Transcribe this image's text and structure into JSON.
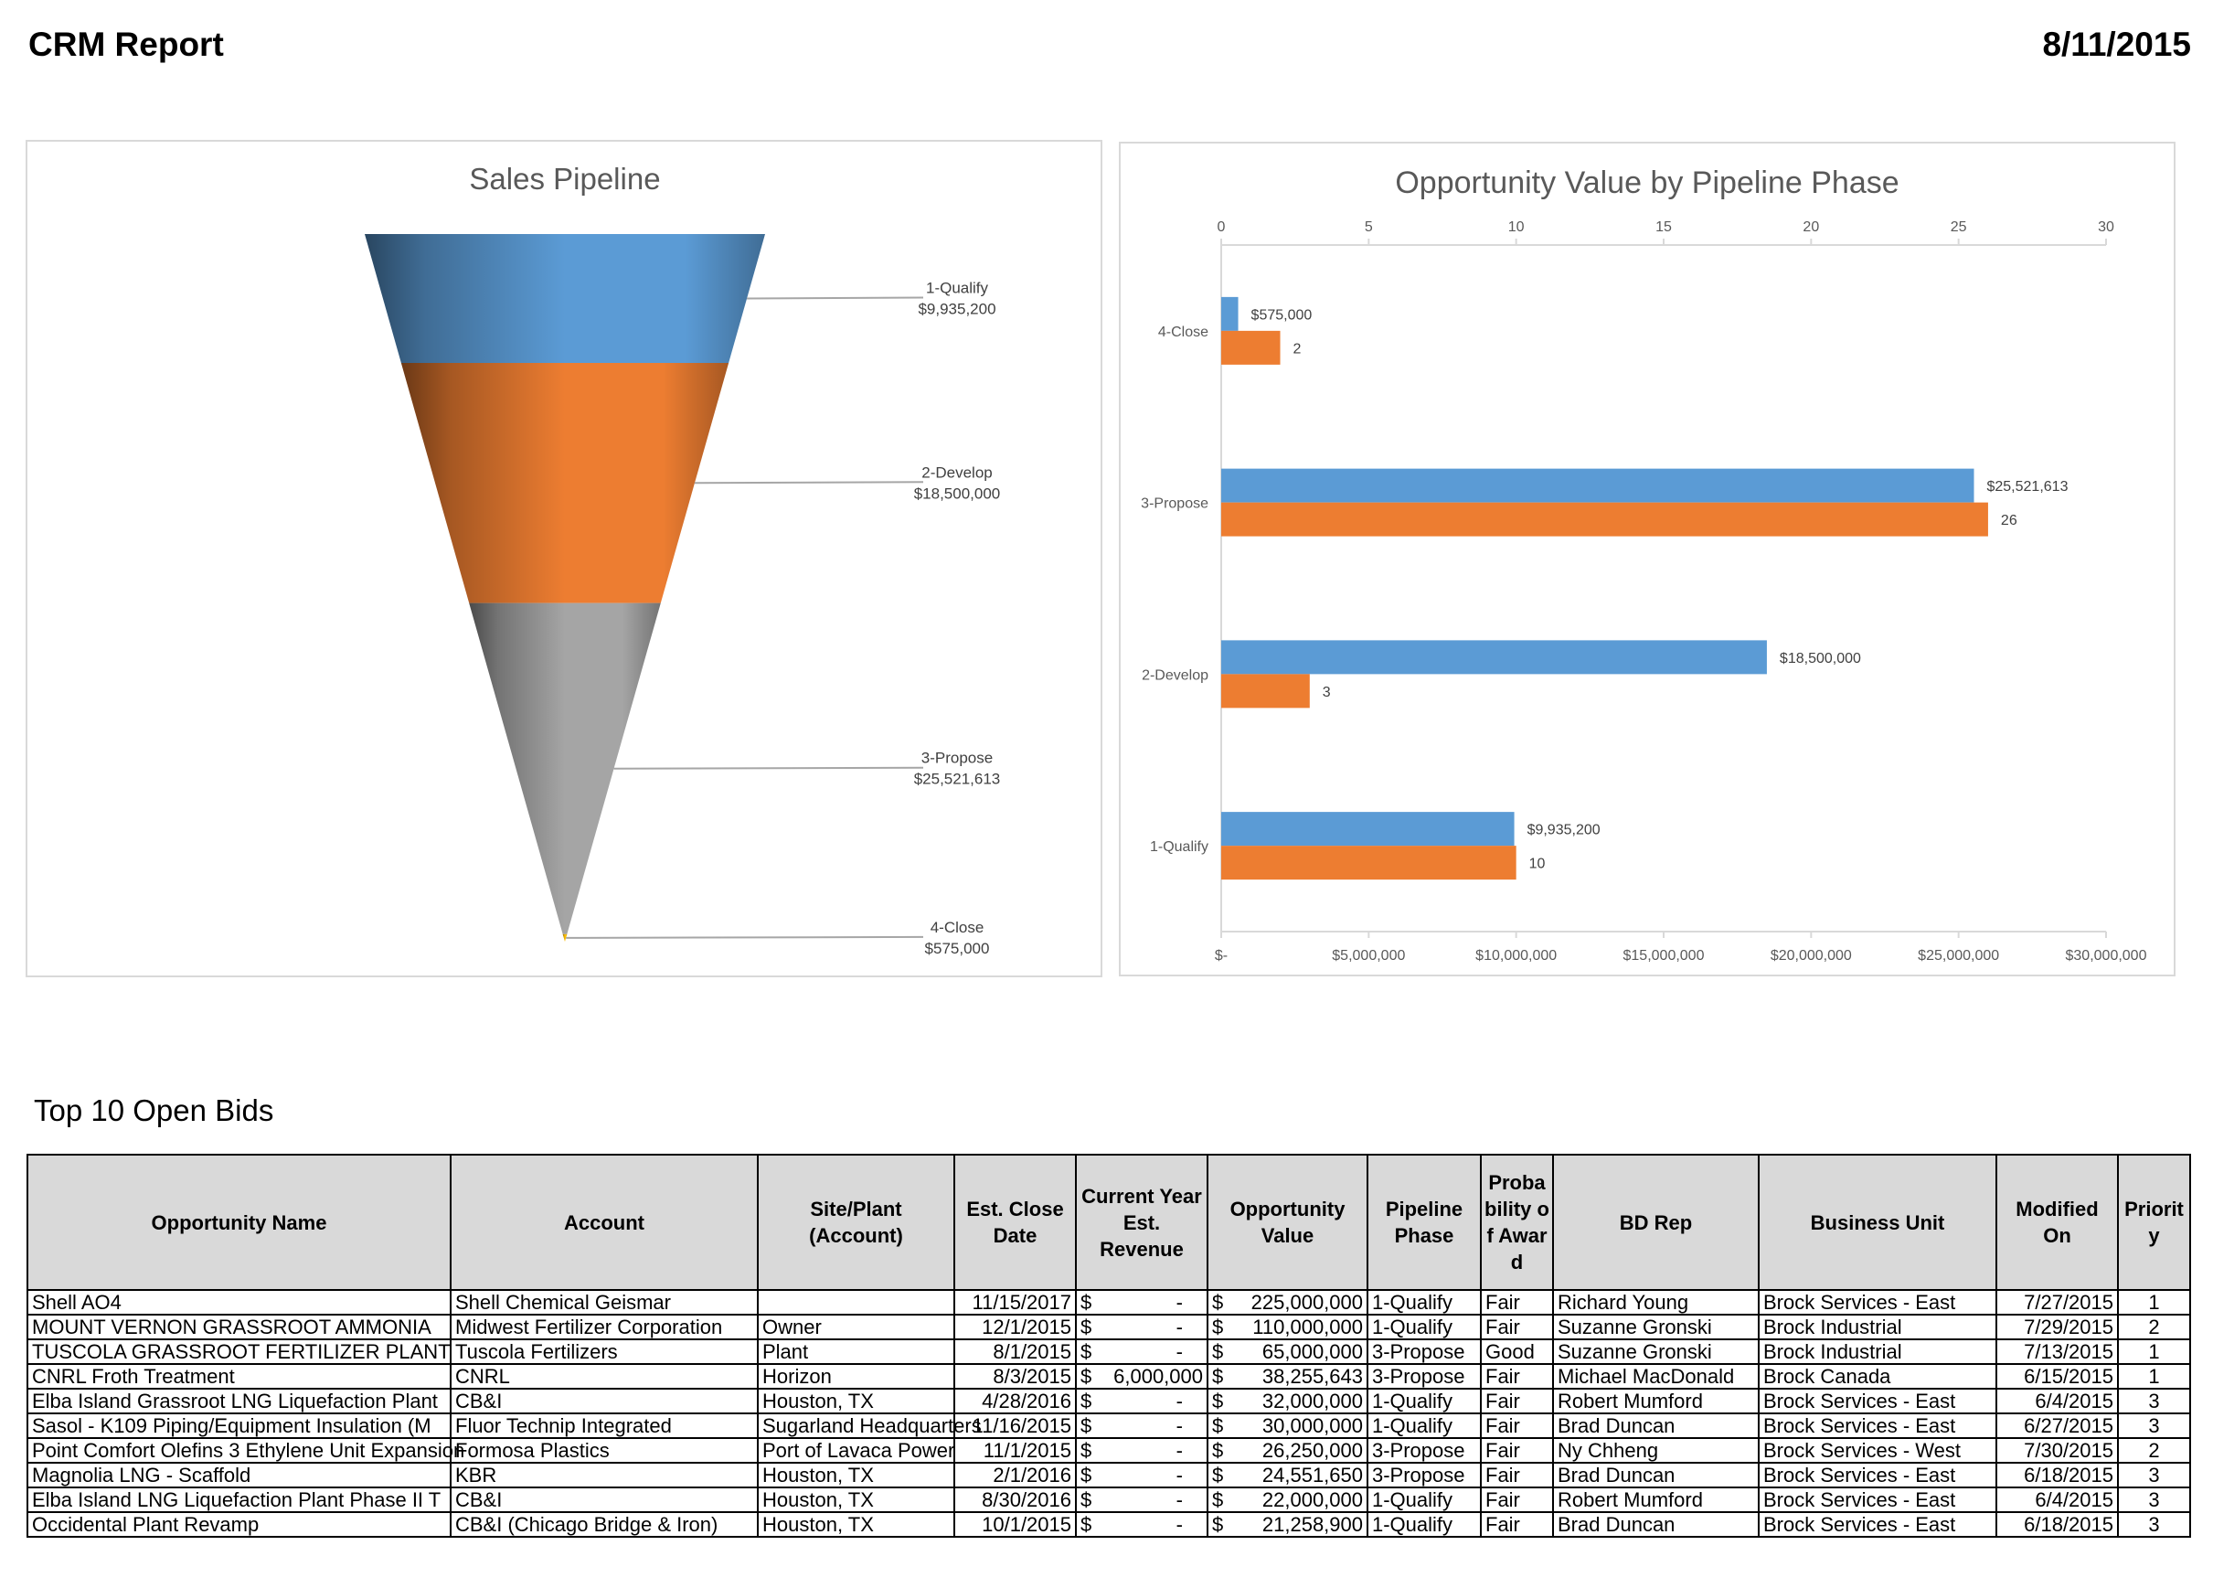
{
  "header": {
    "title": "CRM Report",
    "date": "8/11/2015"
  },
  "colors": {
    "blue": "#5B9BD5",
    "orange": "#ED7D31",
    "gray": "#A5A5A5",
    "chart_text": "#595959"
  },
  "chart_data": [
    {
      "type": "funnel",
      "title": "Sales Pipeline",
      "categories": [
        "1-Qualify",
        "2-Develop",
        "3-Propose",
        "4-Close"
      ],
      "values": [
        9935200,
        18500000,
        25521613,
        575000
      ],
      "value_labels": [
        "$9,935,200",
        "$18,500,000",
        "$25,521,613",
        "$575,000"
      ],
      "colors": [
        "#5B9BD5",
        "#ED7D31",
        "#A5A5A5",
        "#FFC000"
      ]
    },
    {
      "type": "bar",
      "orientation": "horizontal",
      "title": "Opportunity Value by Pipeline Phase",
      "categories": [
        "4-Close",
        "3-Propose",
        "2-Develop",
        "1-Qualify"
      ],
      "series": [
        {
          "values": [
            575000,
            25521613,
            18500000,
            9935200
          ],
          "labels": [
            "$575,000",
            "$25,521,613",
            "$18,500,000",
            "$9,935,200"
          ],
          "color": "#5B9BD5",
          "axis": "bottom"
        },
        {
          "values": [
            2,
            26,
            3,
            10
          ],
          "labels": [
            "2",
            "26",
            "3",
            "10"
          ],
          "color": "#ED7D31",
          "axis": "top"
        }
      ],
      "top_axis": {
        "range": [
          0,
          30
        ],
        "ticks": [
          "0",
          "5",
          "10",
          "15",
          "20",
          "25",
          "30"
        ]
      },
      "bottom_axis": {
        "range": [
          0,
          30000000
        ],
        "ticks": [
          "$-",
          "$5,000,000",
          "$10,000,000",
          "$15,000,000",
          "$20,000,000",
          "$25,000,000",
          "$30,000,000"
        ]
      },
      "grid": false,
      "legend": "none"
    }
  ],
  "bids": {
    "title": "Top 10 Open Bids",
    "currency_symbol": "$",
    "columns": [
      "Opportunity Name",
      "Account",
      "Site/Plant (Account)",
      "Est. Close Date",
      "Current Year Est. Revenue",
      "Opportunity Value",
      "Pipeline Phase",
      "Proba bility of Award",
      "BD Rep",
      "Business Unit",
      "Modified On",
      "Priorit y"
    ],
    "rows": [
      {
        "name": "Shell AO4",
        "account": "Shell Chemical Geismar",
        "site": "",
        "close": "11/15/2017",
        "revenue": "-",
        "value": "225,000,000",
        "phase": "1-Qualify",
        "prob": "Fair",
        "rep": "Richard Young",
        "unit": "Brock Services - East",
        "modified": "7/27/2015",
        "priority": "1"
      },
      {
        "name": "MOUNT VERNON GRASSROOT AMMONIA",
        "account": "Midwest Fertilizer Corporation",
        "site": "Owner",
        "close": "12/1/2015",
        "revenue": "-",
        "value": "110,000,000",
        "phase": "1-Qualify",
        "prob": "Fair",
        "rep": "Suzanne Gronski",
        "unit": "Brock Industrial",
        "modified": "7/29/2015",
        "priority": "2"
      },
      {
        "name": "TUSCOLA GRASSROOT FERTILIZER PLANT",
        "account": "Tuscola Fertilizers",
        "site": "Plant",
        "close": "8/1/2015",
        "revenue": "-",
        "value": "65,000,000",
        "phase": "3-Propose",
        "prob": "Good",
        "rep": "Suzanne Gronski",
        "unit": "Brock Industrial",
        "modified": "7/13/2015",
        "priority": "1"
      },
      {
        "name": "CNRL Froth Treatment",
        "account": "CNRL",
        "site": "Horizon",
        "close": "8/3/2015",
        "revenue": "6,000,000",
        "value": "38,255,643",
        "phase": "3-Propose",
        "prob": "Fair",
        "rep": "Michael MacDonald",
        "unit": "Brock Canada",
        "modified": "6/15/2015",
        "priority": "1"
      },
      {
        "name": "Elba Island Grassroot LNG Liquefaction Plant",
        "account": "CB&I",
        "site": "Houston, TX",
        "close": "4/28/2016",
        "revenue": "-",
        "value": "32,000,000",
        "phase": "1-Qualify",
        "prob": "Fair",
        "rep": "Robert Mumford",
        "unit": "Brock Services - East",
        "modified": "6/4/2015",
        "priority": "3"
      },
      {
        "name": "Sasol - K109 Piping/Equipment Insulation (M",
        "account": "Fluor Technip Integrated",
        "site": "Sugarland Headquarters",
        "close": "11/16/2015",
        "revenue": "-",
        "value": "30,000,000",
        "phase": "1-Qualify",
        "prob": "Fair",
        "rep": "Brad Duncan",
        "unit": "Brock Services - East",
        "modified": "6/27/2015",
        "priority": "3"
      },
      {
        "name": "Point Comfort Olefins 3 Ethylene Unit Expansion",
        "account": "Formosa Plastics",
        "site": "Port of Lavaca Power",
        "close": "11/1/2015",
        "revenue": "-",
        "value": "26,250,000",
        "phase": "3-Propose",
        "prob": "Fair",
        "rep": "Ny Chheng",
        "unit": "Brock Services - West",
        "modified": "7/30/2015",
        "priority": "2"
      },
      {
        "name": "Magnolia LNG - Scaffold",
        "account": "KBR",
        "site": "Houston, TX",
        "close": "2/1/2016",
        "revenue": "-",
        "value": "24,551,650",
        "phase": "3-Propose",
        "prob": "Fair",
        "rep": "Brad Duncan",
        "unit": "Brock Services - East",
        "modified": "6/18/2015",
        "priority": "3"
      },
      {
        "name": "Elba Island LNG Liquefaction Plant Phase II T",
        "account": "CB&I",
        "site": "Houston, TX",
        "close": "8/30/2016",
        "revenue": "-",
        "value": "22,000,000",
        "phase": "1-Qualify",
        "prob": "Fair",
        "rep": "Robert Mumford",
        "unit": "Brock Services - East",
        "modified": "6/4/2015",
        "priority": "3"
      },
      {
        "name": "Occidental Plant Revamp",
        "account": "CB&I (Chicago Bridge & Iron)",
        "site": "Houston, TX",
        "close": "10/1/2015",
        "revenue": "-",
        "value": "21,258,900",
        "phase": "1-Qualify",
        "prob": "Fair",
        "rep": "Brad Duncan",
        "unit": "Brock Services - East",
        "modified": "6/18/2015",
        "priority": "3"
      }
    ]
  }
}
